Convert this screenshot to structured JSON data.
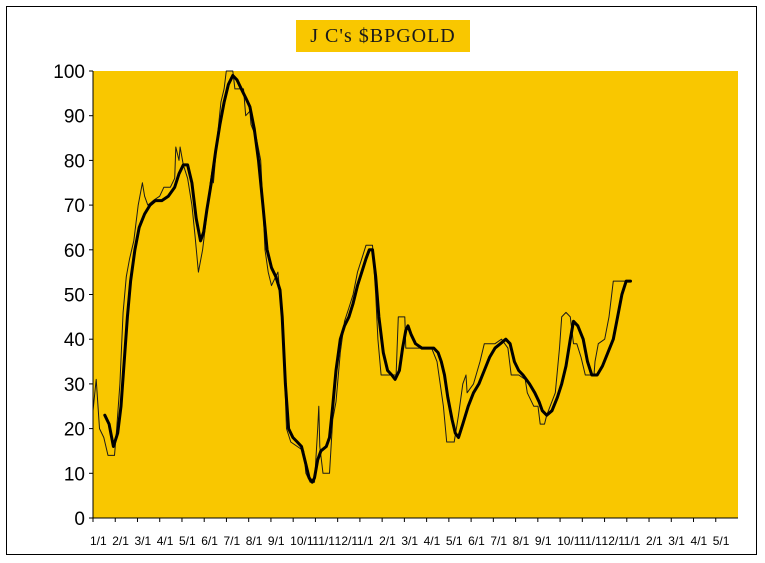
{
  "chart_data": {
    "type": "line",
    "title": "J C's $BPGOLD",
    "xlabel": "",
    "ylabel": "",
    "ylim": [
      0,
      100
    ],
    "yticks": [
      "0",
      "10",
      "20",
      "30",
      "40",
      "50",
      "60",
      "70",
      "80",
      "90",
      "100"
    ],
    "xticks": [
      "1/1",
      "2/1",
      "3/1",
      "4/1",
      "5/1",
      "6/1",
      "7/1",
      "8/1",
      "9/1",
      "10/1",
      "11/1",
      "12/1",
      "1/1",
      "2/1",
      "3/1",
      "4/1",
      "5/1",
      "6/1",
      "7/1",
      "8/1",
      "9/1",
      "10/1",
      "11/1",
      "12/1",
      "1/1",
      "2/1",
      "3/1",
      "4/1",
      "5/1"
    ],
    "x_range": [
      0,
      30
    ],
    "grid": false,
    "colors": {
      "plot_background": "#f9c700",
      "title_background": "#f9c700",
      "border": "#000000",
      "raw_line": "#1a1a1a",
      "smooth_line": "#000000"
    },
    "series": [
      {
        "points": [
          [
            0.0,
            24
          ],
          [
            0.15,
            31
          ],
          [
            0.3,
            20
          ],
          [
            0.5,
            18
          ],
          [
            0.7,
            14
          ],
          [
            0.9,
            14
          ],
          [
            1.0,
            14
          ],
          [
            1.1,
            20
          ],
          [
            1.25,
            30
          ],
          [
            1.4,
            46
          ],
          [
            1.55,
            54
          ],
          [
            1.7,
            58
          ],
          [
            1.9,
            62
          ],
          [
            2.1,
            70
          ],
          [
            2.3,
            75
          ],
          [
            2.4,
            72
          ],
          [
            2.55,
            70
          ],
          [
            2.8,
            71
          ],
          [
            3.1,
            72
          ],
          [
            3.3,
            74
          ],
          [
            3.6,
            74
          ],
          [
            3.8,
            76
          ],
          [
            3.85,
            83
          ],
          [
            4.0,
            80
          ],
          [
            4.05,
            83
          ],
          [
            4.2,
            79
          ],
          [
            4.4,
            76
          ],
          [
            4.6,
            70
          ],
          [
            4.75,
            63
          ],
          [
            4.9,
            55
          ],
          [
            5.1,
            60
          ],
          [
            5.35,
            70
          ],
          [
            5.45,
            75
          ],
          [
            5.55,
            78
          ],
          [
            5.6,
            75
          ],
          [
            5.8,
            86
          ],
          [
            5.95,
            93
          ],
          [
            6.1,
            96
          ],
          [
            6.2,
            100
          ],
          [
            6.5,
            100
          ],
          [
            6.6,
            96
          ],
          [
            7.0,
            96
          ],
          [
            7.1,
            90
          ],
          [
            7.3,
            91
          ],
          [
            7.35,
            88
          ],
          [
            7.6,
            85
          ],
          [
            7.8,
            80
          ],
          [
            7.9,
            70
          ],
          [
            8.0,
            60
          ],
          [
            8.15,
            55
          ],
          [
            8.3,
            52
          ],
          [
            8.4,
            53
          ],
          [
            8.6,
            55
          ],
          [
            8.7,
            50
          ],
          [
            8.85,
            40
          ],
          [
            9.0,
            20
          ],
          [
            9.2,
            17
          ],
          [
            9.5,
            16
          ],
          [
            9.8,
            15
          ],
          [
            9.9,
            10
          ],
          [
            10.1,
            8
          ],
          [
            10.3,
            8
          ],
          [
            10.45,
            20
          ],
          [
            10.5,
            25
          ],
          [
            10.55,
            16
          ],
          [
            10.7,
            10
          ],
          [
            11.0,
            10
          ],
          [
            11.15,
            22
          ],
          [
            11.3,
            26
          ],
          [
            11.5,
            37
          ],
          [
            11.7,
            44
          ],
          [
            11.9,
            47
          ],
          [
            12.1,
            50
          ],
          [
            12.3,
            55
          ],
          [
            12.5,
            58
          ],
          [
            12.7,
            61
          ],
          [
            13.0,
            61
          ],
          [
            13.15,
            50
          ],
          [
            13.25,
            40
          ],
          [
            13.4,
            32
          ],
          [
            13.8,
            32
          ],
          [
            14.1,
            32
          ],
          [
            14.2,
            45
          ],
          [
            14.5,
            45
          ],
          [
            14.55,
            38
          ],
          [
            14.8,
            38
          ],
          [
            15.2,
            38
          ],
          [
            15.5,
            38
          ],
          [
            15.75,
            38
          ],
          [
            16.0,
            35
          ],
          [
            16.3,
            25
          ],
          [
            16.45,
            17
          ],
          [
            16.8,
            17
          ],
          [
            17.0,
            23
          ],
          [
            17.2,
            30
          ],
          [
            17.35,
            32
          ],
          [
            17.4,
            28
          ],
          [
            17.7,
            30
          ],
          [
            18.0,
            35
          ],
          [
            18.2,
            39
          ],
          [
            18.7,
            39
          ],
          [
            19.0,
            40
          ],
          [
            19.3,
            38
          ],
          [
            19.45,
            32
          ],
          [
            19.8,
            32
          ],
          [
            20.1,
            31
          ],
          [
            20.2,
            28
          ],
          [
            20.5,
            25
          ],
          [
            20.7,
            25
          ],
          [
            20.8,
            21
          ],
          [
            21.0,
            21
          ],
          [
            21.1,
            23
          ],
          [
            21.5,
            28
          ],
          [
            21.7,
            38
          ],
          [
            21.8,
            45
          ],
          [
            22.0,
            46
          ],
          [
            22.2,
            45
          ],
          [
            22.35,
            39
          ],
          [
            22.5,
            39
          ],
          [
            22.7,
            36
          ],
          [
            22.9,
            32
          ],
          [
            23.3,
            32
          ],
          [
            23.35,
            35
          ],
          [
            23.5,
            39
          ],
          [
            23.8,
            40
          ],
          [
            24.0,
            45
          ],
          [
            24.2,
            53
          ],
          [
            24.5,
            53
          ],
          [
            24.7,
            53
          ],
          [
            25.0,
            53
          ]
        ]
      },
      {
        "points": [
          [
            0.55,
            23
          ],
          [
            0.75,
            21
          ],
          [
            0.95,
            16
          ],
          [
            1.15,
            19
          ],
          [
            1.3,
            25
          ],
          [
            1.45,
            35
          ],
          [
            1.6,
            45
          ],
          [
            1.75,
            53
          ],
          [
            1.95,
            60
          ],
          [
            2.15,
            65
          ],
          [
            2.4,
            68
          ],
          [
            2.65,
            70
          ],
          [
            2.9,
            71
          ],
          [
            3.2,
            71
          ],
          [
            3.5,
            72
          ],
          [
            3.8,
            74
          ],
          [
            4.0,
            77
          ],
          [
            4.2,
            79
          ],
          [
            4.4,
            79
          ],
          [
            4.6,
            75
          ],
          [
            4.8,
            67
          ],
          [
            5.0,
            62
          ],
          [
            5.15,
            64
          ],
          [
            5.3,
            69
          ],
          [
            5.5,
            75
          ],
          [
            5.7,
            82
          ],
          [
            5.9,
            88
          ],
          [
            6.1,
            93
          ],
          [
            6.3,
            97
          ],
          [
            6.5,
            99
          ],
          [
            6.7,
            98
          ],
          [
            6.9,
            96
          ],
          [
            7.1,
            94
          ],
          [
            7.3,
            92
          ],
          [
            7.5,
            87
          ],
          [
            7.7,
            80
          ],
          [
            7.9,
            70
          ],
          [
            8.1,
            60
          ],
          [
            8.3,
            56
          ],
          [
            8.5,
            54
          ],
          [
            8.7,
            51
          ],
          [
            8.8,
            45
          ],
          [
            8.95,
            30
          ],
          [
            9.1,
            20
          ],
          [
            9.3,
            18
          ],
          [
            9.5,
            17
          ],
          [
            9.7,
            16
          ],
          [
            9.9,
            12
          ],
          [
            10.05,
            9
          ],
          [
            10.2,
            8
          ],
          [
            10.3,
            9
          ],
          [
            10.45,
            13
          ],
          [
            10.6,
            15
          ],
          [
            10.85,
            16
          ],
          [
            11.0,
            18
          ],
          [
            11.15,
            25
          ],
          [
            11.3,
            33
          ],
          [
            11.5,
            40
          ],
          [
            11.7,
            43
          ],
          [
            11.9,
            45
          ],
          [
            12.1,
            48
          ],
          [
            12.3,
            52
          ],
          [
            12.5,
            55
          ],
          [
            12.7,
            58
          ],
          [
            12.85,
            60
          ],
          [
            13.0,
            60
          ],
          [
            13.15,
            54
          ],
          [
            13.3,
            45
          ],
          [
            13.5,
            37
          ],
          [
            13.7,
            33
          ],
          [
            13.9,
            32
          ],
          [
            14.05,
            31
          ],
          [
            14.25,
            33
          ],
          [
            14.4,
            38
          ],
          [
            14.55,
            42
          ],
          [
            14.65,
            43
          ],
          [
            14.8,
            41
          ],
          [
            15.0,
            39
          ],
          [
            15.3,
            38
          ],
          [
            15.6,
            38
          ],
          [
            15.85,
            38
          ],
          [
            16.05,
            37
          ],
          [
            16.2,
            35
          ],
          [
            16.35,
            32
          ],
          [
            16.5,
            27
          ],
          [
            16.7,
            22
          ],
          [
            16.85,
            19
          ],
          [
            17.0,
            18
          ],
          [
            17.2,
            21
          ],
          [
            17.45,
            25
          ],
          [
            17.7,
            28
          ],
          [
            17.95,
            30
          ],
          [
            18.2,
            33
          ],
          [
            18.45,
            36
          ],
          [
            18.7,
            38
          ],
          [
            18.95,
            39
          ],
          [
            19.2,
            40
          ],
          [
            19.4,
            39
          ],
          [
            19.6,
            35
          ],
          [
            19.8,
            33
          ],
          [
            20.0,
            32
          ],
          [
            20.3,
            30
          ],
          [
            20.55,
            28
          ],
          [
            20.75,
            26
          ],
          [
            20.9,
            24
          ],
          [
            21.1,
            23
          ],
          [
            21.35,
            24
          ],
          [
            21.6,
            27
          ],
          [
            21.8,
            30
          ],
          [
            22.0,
            34
          ],
          [
            22.2,
            40
          ],
          [
            22.35,
            44
          ],
          [
            22.55,
            43
          ],
          [
            22.8,
            40
          ],
          [
            23.0,
            35
          ],
          [
            23.2,
            32
          ],
          [
            23.45,
            32
          ],
          [
            23.7,
            34
          ],
          [
            23.95,
            37
          ],
          [
            24.2,
            40
          ],
          [
            24.4,
            45
          ],
          [
            24.6,
            50
          ],
          [
            24.8,
            53
          ],
          [
            25.0,
            53
          ]
        ]
      }
    ]
  }
}
